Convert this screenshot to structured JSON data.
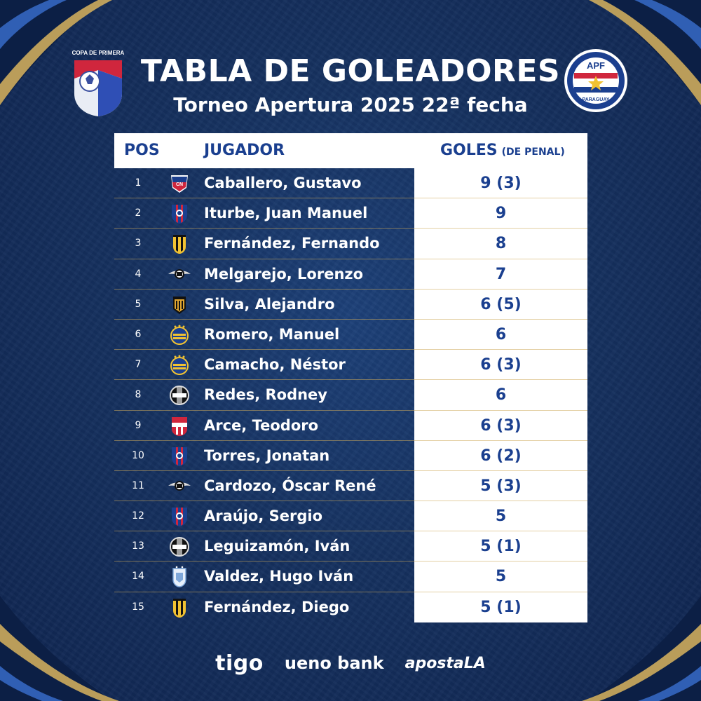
{
  "header": {
    "title": "TABLA DE GOLEADORES",
    "subtitle": "Torneo Apertura 2025 22ª fecha",
    "left_logo_text": "COPA DE PRIMERA",
    "right_logo_text": "APF",
    "right_logo_subtext": "PARAGUAY"
  },
  "table": {
    "col_pos": "POS",
    "col_player": "JUGADOR",
    "col_goals": "GOLES",
    "col_goals_note": "(DE PENAL)",
    "rows": [
      {
        "pos": "1",
        "name": "Caballero, Gustavo",
        "goals": "9 (3)",
        "crest": "nacional-crest-icon"
      },
      {
        "pos": "2",
        "name": "Iturbe, Juan Manuel",
        "goals": "9",
        "crest": "cerro-porteno-crest-icon"
      },
      {
        "pos": "3",
        "name": "Fernández, Fernando",
        "goals": "8",
        "crest": "guarani-crest-icon"
      },
      {
        "pos": "4",
        "name": "Melgarejo, Lorenzo",
        "goals": "7",
        "crest": "libertad-crest-icon"
      },
      {
        "pos": "5",
        "name": "Silva, Alejandro",
        "goals": "6 (5)",
        "crest": "recoleta-crest-icon"
      },
      {
        "pos": "6",
        "name": "Romero, Manuel",
        "goals": "6",
        "crest": "sportivo-luqueno-crest-icon"
      },
      {
        "pos": "7",
        "name": "Camacho, Néstor",
        "goals": "6 (3)",
        "crest": "sportivo-luqueno-crest-icon"
      },
      {
        "pos": "8",
        "name": "Redes, Rodney",
        "goals": "6",
        "crest": "olimpia-crest-icon"
      },
      {
        "pos": "9",
        "name": "Arce, Teodoro",
        "goals": "6 (3)",
        "crest": "caballero-crest-icon"
      },
      {
        "pos": "10",
        "name": "Torres, Jonatan",
        "goals": "6 (2)",
        "crest": "cerro-porteno-crest-icon"
      },
      {
        "pos": "11",
        "name": "Cardozo, Óscar René",
        "goals": "5 (3)",
        "crest": "libertad-crest-icon"
      },
      {
        "pos": "12",
        "name": "Araújo, Sergio",
        "goals": "5",
        "crest": "cerro-porteno-crest-icon"
      },
      {
        "pos": "13",
        "name": "Leguizamón, Iván",
        "goals": "5 (1)",
        "crest": "olimpia-crest-icon"
      },
      {
        "pos": "14",
        "name": "Valdez, Hugo Iván",
        "goals": "5",
        "crest": "ameliano-crest-icon"
      },
      {
        "pos": "15",
        "name": "Fernández, Diego",
        "goals": "5 (1)",
        "crest": "guarani-crest-icon"
      }
    ]
  },
  "sponsors": {
    "tigo": "tigo",
    "ueno": "ueno bank",
    "apuesta": "apostaLA"
  },
  "colors": {
    "background": "#15315f",
    "accent_blue": "#1a3f8f",
    "gold": "#d9b45e",
    "white": "#ffffff"
  }
}
